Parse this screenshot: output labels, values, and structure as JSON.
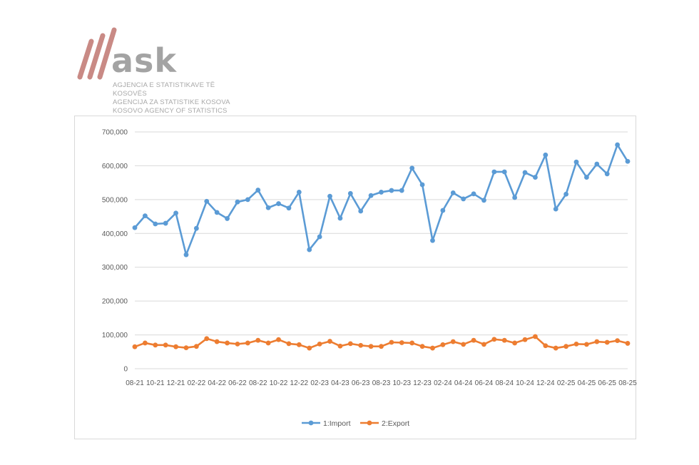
{
  "logo": {
    "word": "ask",
    "line1": "AGJENCIA E STATISTIKAVE TË KOSOVËS",
    "line2": "AGENCIJA ZA STATISTIKE KOSOVA",
    "line3": "KOSOVO AGENCY OF STATISTICS",
    "stripe_color": "#c98a85",
    "text_color": "#a3a3a3"
  },
  "chart_data": {
    "type": "line",
    "title": "",
    "xlabel": "",
    "ylabel": "",
    "ylim": [
      0,
      700000
    ],
    "yticks": [
      0,
      100000,
      200000,
      300000,
      400000,
      500000,
      600000,
      700000
    ],
    "ytick_labels": [
      "0",
      "100,000",
      "200,000",
      "300,000",
      "400,000",
      "500,000",
      "600,000",
      "700,000"
    ],
    "grid": true,
    "legend_position": "bottom",
    "x": [
      "08-21",
      "09-21",
      "10-21",
      "11-21",
      "12-21",
      "01-22",
      "02-22",
      "03-22",
      "04-22",
      "05-22",
      "06-22",
      "07-22",
      "08-22",
      "09-22",
      "10-22",
      "11-22",
      "12-22",
      "01-23",
      "02-23",
      "03-23",
      "04-23",
      "05-23",
      "06-23",
      "07-23",
      "08-23",
      "09-23",
      "10-23",
      "11-23",
      "12-23",
      "01-24",
      "02-24",
      "03-24",
      "04-24",
      "05-24",
      "06-24",
      "07-24",
      "08-24",
      "09-24",
      "10-24",
      "11-24",
      "12-24",
      "01-25",
      "02-25",
      "03-25",
      "04-25",
      "05-25",
      "06-25",
      "07-25",
      "08-25"
    ],
    "xtick_labels": [
      "08-21",
      "10-21",
      "12-21",
      "02-22",
      "04-22",
      "06-22",
      "08-22",
      "10-22",
      "12-22",
      "02-23",
      "04-23",
      "06-23",
      "08-23",
      "10-23",
      "12-23",
      "02-24",
      "04-24",
      "06-24",
      "08-24",
      "10-24",
      "12-24",
      "02-25",
      "04-25",
      "06-25",
      "08-25"
    ],
    "series": [
      {
        "name": "1:Import",
        "color": "#5b9bd5",
        "values": [
          417000,
          452000,
          428000,
          430000,
          460000,
          337000,
          415000,
          495000,
          462000,
          444000,
          493000,
          500000,
          528000,
          476000,
          488000,
          475000,
          522000,
          352000,
          390000,
          510000,
          445000,
          518000,
          466000,
          512000,
          522000,
          527000,
          527000,
          593000,
          544000,
          379000,
          468000,
          520000,
          502000,
          517000,
          498000,
          582000,
          582000,
          506000,
          580000,
          566000,
          632000,
          472000,
          516000,
          611000,
          566000,
          605000,
          576000,
          662000,
          613000
        ]
      },
      {
        "name": "2:Export",
        "color": "#ed7d31",
        "values": [
          65000,
          76000,
          70000,
          70000,
          65000,
          62000,
          66000,
          89000,
          80000,
          76000,
          73000,
          76000,
          84000,
          76000,
          86000,
          74000,
          71000,
          61000,
          73000,
          81000,
          67000,
          74000,
          69000,
          66000,
          66000,
          78000,
          77000,
          76000,
          66000,
          61000,
          71000,
          80000,
          72000,
          84000,
          72000,
          87000,
          84000,
          76000,
          86000,
          95000,
          68000,
          61000,
          66000,
          73000,
          72000,
          80000,
          78000,
          83000,
          75000
        ]
      }
    ]
  }
}
